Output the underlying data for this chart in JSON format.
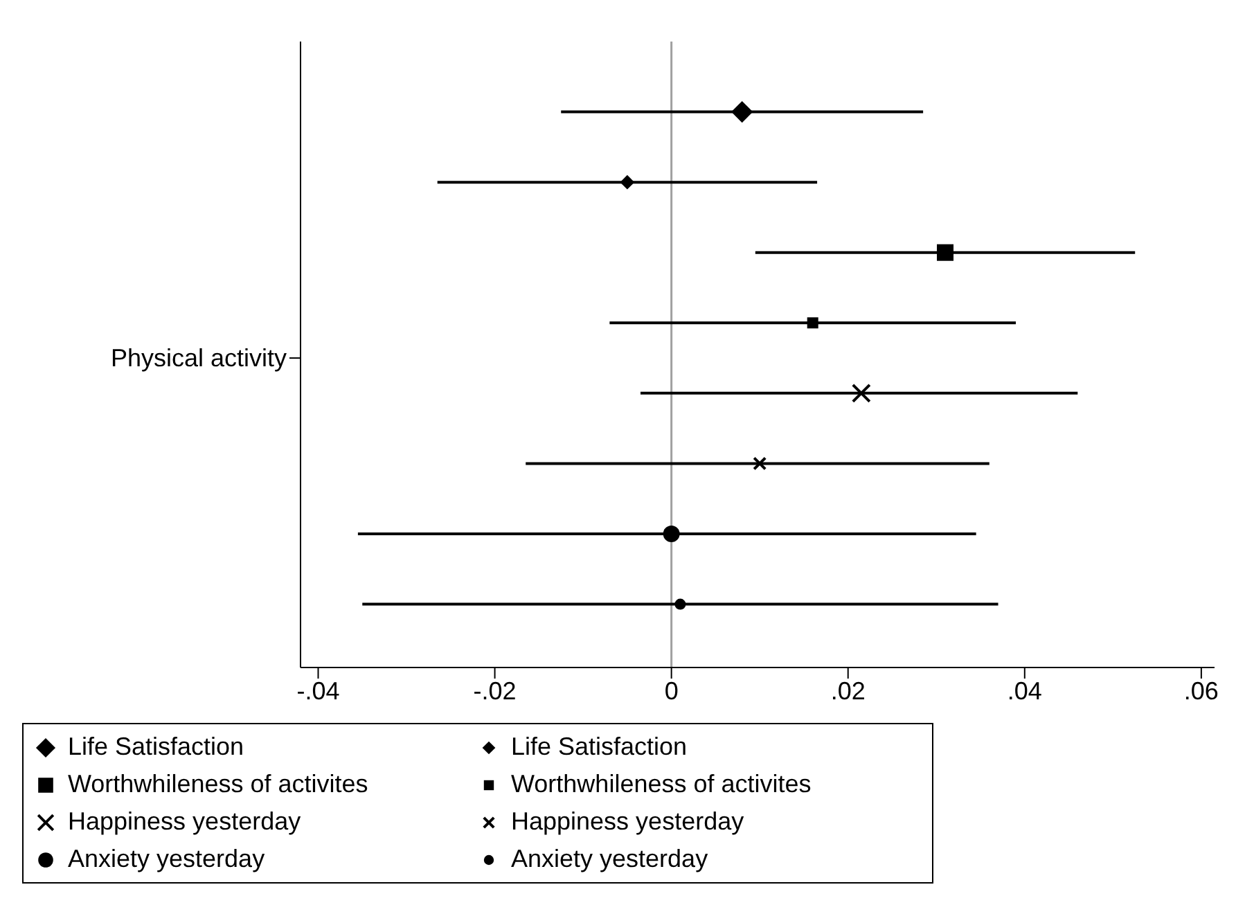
{
  "chart_data": {
    "type": "scatter",
    "orientation": "horizontal",
    "ylabel": "Physical activity",
    "categories": [
      null,
      null,
      null,
      null,
      null,
      null,
      null,
      null
    ],
    "series": [
      {
        "name": "Life Satisfaction",
        "color": "#000000",
        "marker": "diamond",
        "values": [
          0.008,
          null,
          null,
          null,
          null,
          null,
          null,
          null
        ],
        "errors": [
          [
            -0.0125,
            0.0285
          ],
          null,
          null,
          null,
          null,
          null,
          null,
          null
        ]
      },
      {
        "name": "Life Satisfaction",
        "color": "#000000",
        "marker": "diamond",
        "values": [
          null,
          -0.005,
          null,
          null,
          null,
          null,
          null,
          null
        ],
        "errors": [
          null,
          [
            -0.0265,
            0.0165
          ],
          null,
          null,
          null,
          null,
          null,
          null
        ]
      },
      {
        "name": "Worthwhileness of activites",
        "color": "#000000",
        "marker": "square",
        "values": [
          null,
          null,
          0.031,
          null,
          null,
          null,
          null,
          null
        ],
        "errors": [
          null,
          null,
          [
            0.0095,
            0.0525
          ],
          null,
          null,
          null,
          null,
          null
        ]
      },
      {
        "name": "Worthwhileness of activites",
        "color": "#000000",
        "marker": "square",
        "values": [
          null,
          null,
          null,
          0.016,
          null,
          null,
          null,
          null
        ],
        "errors": [
          null,
          null,
          null,
          [
            -0.007,
            0.039
          ],
          null,
          null,
          null,
          null
        ]
      },
      {
        "name": "Happiness yesterday",
        "color": "#000000",
        "marker": "cross",
        "values": [
          null,
          null,
          null,
          null,
          0.0215,
          null,
          null,
          null
        ],
        "errors": [
          null,
          null,
          null,
          null,
          [
            -0.0035,
            0.046
          ],
          null,
          null,
          null
        ]
      },
      {
        "name": "Happiness yesterday",
        "color": "#000000",
        "marker": "cross",
        "values": [
          null,
          null,
          null,
          null,
          null,
          0.01,
          null,
          null
        ],
        "errors": [
          null,
          null,
          null,
          null,
          null,
          [
            -0.0165,
            0.036
          ],
          null,
          null
        ]
      },
      {
        "name": "Anxiety yesterday",
        "color": "#000000",
        "marker": "circle",
        "values": [
          null,
          null,
          null,
          null,
          null,
          null,
          0,
          null
        ],
        "errors": [
          null,
          null,
          null,
          null,
          null,
          null,
          [
            -0.0355,
            0.0345
          ],
          null
        ]
      },
      {
        "name": "Anxiety yesterday",
        "color": "#000000",
        "marker": "circle",
        "values": [
          null,
          null,
          null,
          null,
          null,
          null,
          null,
          0.001
        ],
        "errors": [
          null,
          null,
          null,
          null,
          null,
          null,
          null,
          [
            -0.035,
            0.037
          ]
        ]
      }
    ],
    "xlim": [
      -0.042,
      0.0615
    ],
    "xticks": [
      {
        "value": -0.04,
        "label": "-.04"
      },
      {
        "value": -0.02,
        "label": "-.02"
      },
      0,
      {
        "value": 0.02,
        "label": ".02"
      },
      {
        "value": 0.04,
        "label": ".04"
      },
      {
        "value": 0.06,
        "label": ".06"
      }
    ],
    "ref_lines": [
      {
        "axis": "x",
        "value": 0,
        "color": "#a0a0a0"
      }
    ],
    "grid": false,
    "legend": "bottom"
  }
}
